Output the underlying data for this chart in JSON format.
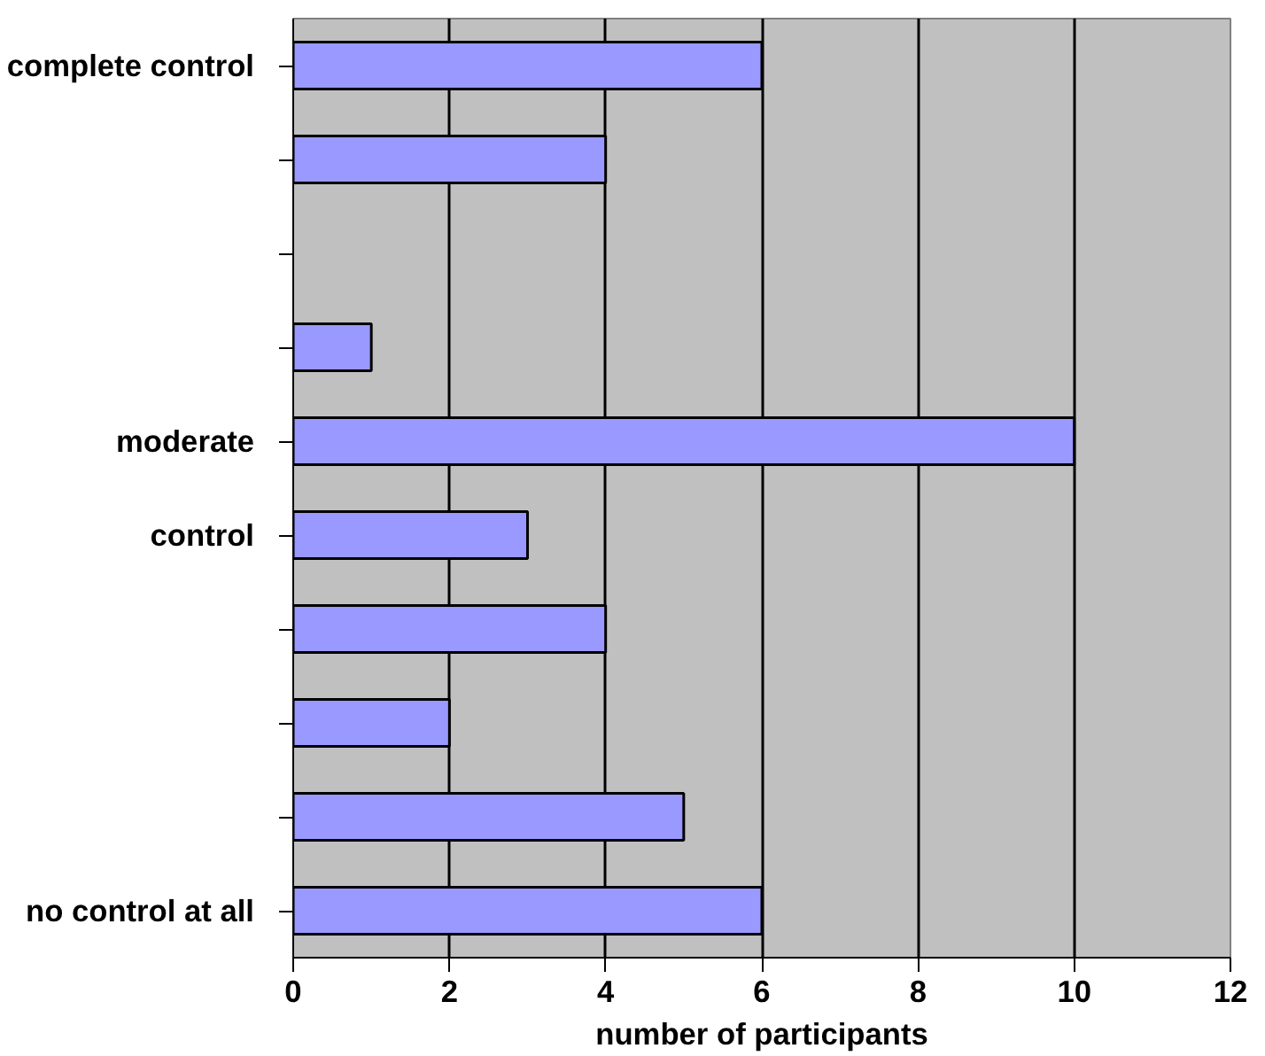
{
  "chart_data": {
    "type": "bar",
    "orientation": "horizontal",
    "xlabel": "number of participants",
    "categories": [
      "complete control",
      null,
      null,
      null,
      "moderate",
      "control",
      null,
      null,
      null,
      "no control at all"
    ],
    "values": [
      6,
      4,
      null,
      1,
      10,
      3,
      4,
      2,
      5,
      6
    ],
    "color": "#9999ff",
    "xlim": [
      0,
      12
    ],
    "xticks": [
      0,
      2,
      4,
      6,
      8,
      10,
      12
    ],
    "grid": "x"
  }
}
